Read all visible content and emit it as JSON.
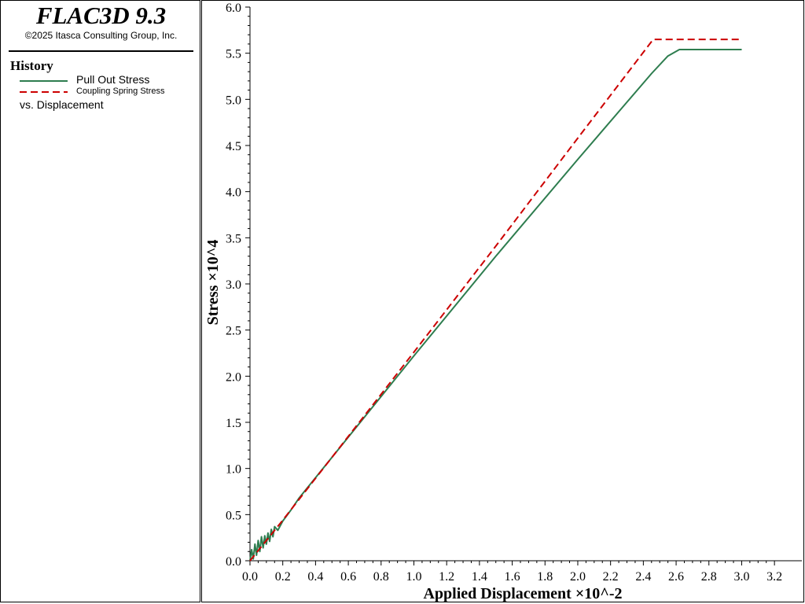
{
  "app": {
    "title": "FLAC3D 9.3",
    "copyright": "©2025 Itasca Consulting Group, Inc."
  },
  "legend": {
    "heading": "History",
    "items": [
      {
        "label": "Pull Out Stress",
        "color": "#2e7d4f",
        "style": "solid"
      },
      {
        "label": "Coupling Spring Stress",
        "color": "#cc0000",
        "style": "dashed"
      }
    ],
    "vs_label": "vs. Displacement"
  },
  "chart_data": {
    "type": "line",
    "xlabel": "Applied Displacement ×10^-2",
    "ylabel": "Stress ×10^4",
    "xlim": [
      0.0,
      3.3
    ],
    "ylim": [
      0.0,
      6.0
    ],
    "xticks": [
      "0.0",
      "0.2",
      "0.4",
      "0.6",
      "0.8",
      "1.0",
      "1.2",
      "1.4",
      "1.6",
      "1.8",
      "2.0",
      "2.2",
      "2.4",
      "2.6",
      "2.8",
      "3.0",
      "3.2"
    ],
    "yticks": [
      "0.0",
      "0.5",
      "1.0",
      "1.5",
      "2.0",
      "2.5",
      "3.0",
      "3.5",
      "4.0",
      "4.5",
      "5.0",
      "5.5",
      "6.0"
    ],
    "grid": false,
    "series": [
      {
        "name": "Pull Out Stress",
        "color": "#2e7d4f",
        "style": "solid",
        "x": [
          0.0,
          0.01,
          0.02,
          0.03,
          0.04,
          0.05,
          0.06,
          0.07,
          0.08,
          0.09,
          0.1,
          0.11,
          0.12,
          0.13,
          0.14,
          0.15,
          0.17,
          0.2,
          0.25,
          0.3,
          0.4,
          1.0,
          1.5,
          2.0,
          2.3,
          2.45,
          2.55,
          2.62,
          2.65,
          3.0
        ],
        "y": [
          0.0,
          0.12,
          0.02,
          0.18,
          0.06,
          0.22,
          0.1,
          0.26,
          0.14,
          0.27,
          0.18,
          0.3,
          0.21,
          0.34,
          0.26,
          0.37,
          0.33,
          0.43,
          0.55,
          0.68,
          0.9,
          2.22,
          3.3,
          4.35,
          4.97,
          5.28,
          5.47,
          5.54,
          5.54,
          5.54
        ]
      },
      {
        "name": "Coupling Spring Stress",
        "color": "#cc0000",
        "style": "dashed",
        "x": [
          0.0,
          0.2,
          0.5,
          1.0,
          1.5,
          2.0,
          2.46,
          3.0
        ],
        "y": [
          0.0,
          0.44,
          1.12,
          2.26,
          3.41,
          4.58,
          5.65,
          5.65
        ]
      }
    ]
  }
}
